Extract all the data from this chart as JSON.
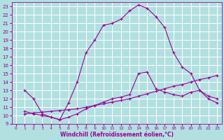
{
  "xlabel": "Windchill (Refroidissement éolien,°C)",
  "bg_color": "#b2e0e0",
  "line_color": "#990099",
  "grid_color": "#ffffff",
  "xlim": [
    -0.5,
    23.5
  ],
  "ylim": [
    9,
    23.5
  ],
  "xticks": [
    0,
    1,
    2,
    3,
    4,
    5,
    6,
    7,
    8,
    9,
    10,
    11,
    12,
    13,
    14,
    15,
    16,
    17,
    18,
    19,
    20,
    21,
    22,
    23
  ],
  "yticks": [
    9,
    10,
    11,
    12,
    13,
    14,
    15,
    16,
    17,
    18,
    19,
    20,
    21,
    22,
    23
  ],
  "curve1_x": [
    1,
    2,
    3,
    4,
    5,
    6,
    7,
    8,
    9,
    10,
    11,
    12,
    13,
    14,
    15,
    16,
    17,
    18,
    19,
    20,
    21,
    22,
    23
  ],
  "curve1_y": [
    13,
    12,
    10.2,
    9.8,
    9.5,
    11.5,
    14.0,
    17.5,
    19.0,
    20.8,
    21.0,
    21.5,
    22.5,
    23.2,
    22.8,
    21.8,
    20.5,
    17.5,
    15.8,
    15.0,
    13.0,
    12.0,
    11.5
  ],
  "curve2_x": [
    1,
    2,
    3,
    4,
    5,
    6,
    7,
    8,
    9,
    10,
    11,
    12,
    13,
    14,
    15,
    16,
    17,
    18,
    19,
    20,
    21,
    22,
    23
  ],
  "curve2_y": [
    10.2,
    10.3,
    10.4,
    10.5,
    10.6,
    10.7,
    10.8,
    11.0,
    11.2,
    11.4,
    11.6,
    11.8,
    12.0,
    12.3,
    12.6,
    12.9,
    13.2,
    13.5,
    13.7,
    14.0,
    14.3,
    14.5,
    14.8
  ],
  "curve3_x": [
    1,
    2,
    3,
    4,
    5,
    6,
    7,
    8,
    9,
    10,
    11,
    12,
    13,
    14,
    15,
    16,
    17,
    18,
    19,
    20,
    21,
    22,
    23
  ],
  "curve3_y": [
    10.5,
    10.2,
    10.0,
    9.8,
    9.5,
    9.8,
    10.2,
    10.8,
    11.2,
    11.6,
    12.0,
    12.2,
    12.5,
    15.0,
    15.2,
    13.2,
    12.8,
    12.5,
    12.3,
    12.8,
    13.0,
    12.3,
    12.0
  ]
}
